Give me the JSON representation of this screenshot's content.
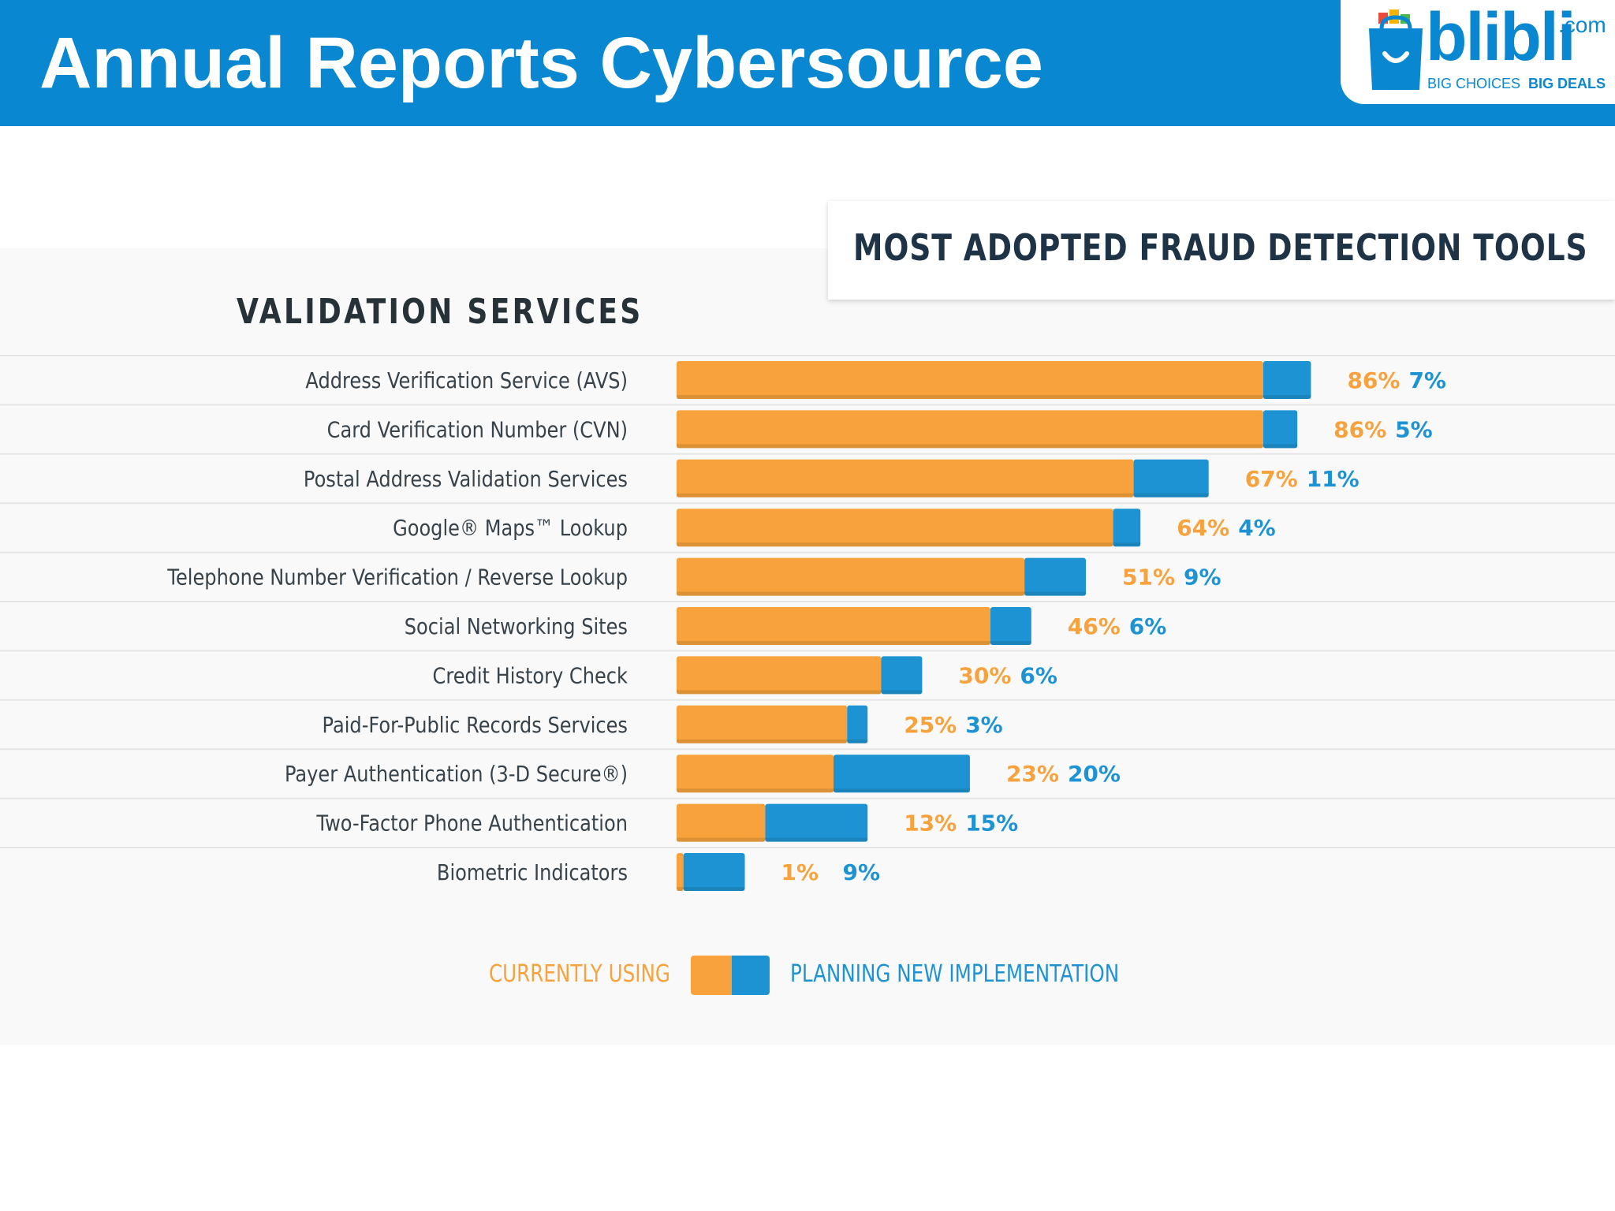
{
  "slide": {
    "title": "Annual Reports Cybersource"
  },
  "logo": {
    "word": "blibli",
    "dotcom": ".com",
    "tagline_1": "BIG CHOICES",
    "tagline_2": "BIG DEALS"
  },
  "colors": {
    "header": "#0a87d1",
    "currently_using": "#f7a23c",
    "planning_new": "#1e93d3"
  },
  "chart_data": {
    "type": "bar",
    "orientation": "horizontal",
    "stacked": true,
    "title": "MOST ADOPTED FRAUD DETECTION TOOLS",
    "subtitle": "VALIDATION SERVICES",
    "categories": [
      "Address Verification Service (AVS)",
      "Card Verification Number (CVN)",
      "Postal Address Validation Services",
      "Google® Maps™ Lookup",
      "Telephone Number Verification / Reverse Lookup",
      "Social Networking Sites",
      "Credit History Check",
      "Paid-For-Public Records Services",
      "Payer Authentication (3-D Secure®)",
      "Two-Factor Phone Authentication",
      "Biometric Indicators"
    ],
    "series": [
      {
        "name": "CURRENTLY USING",
        "color": "#f7a23c",
        "values": [
          86,
          86,
          67,
          64,
          51,
          46,
          30,
          25,
          23,
          13,
          1
        ],
        "labels": [
          "86%",
          "86%",
          "67%",
          "64%",
          "51%",
          "46%",
          "30%",
          "25%",
          "23%",
          "13%",
          "1%"
        ]
      },
      {
        "name": "PLANNING NEW IMPLEMENTATION",
        "color": "#1e93d3",
        "values": [
          7,
          5,
          11,
          4,
          9,
          6,
          6,
          3,
          20,
          15,
          9
        ],
        "labels": [
          "7%",
          "5%",
          "11%",
          "4%",
          "9%",
          "6%",
          "6%",
          "3%",
          "20%",
          "15%",
          "9%"
        ]
      }
    ],
    "xlim": [
      0,
      100
    ],
    "grid": false,
    "legend_position": "bottom"
  }
}
